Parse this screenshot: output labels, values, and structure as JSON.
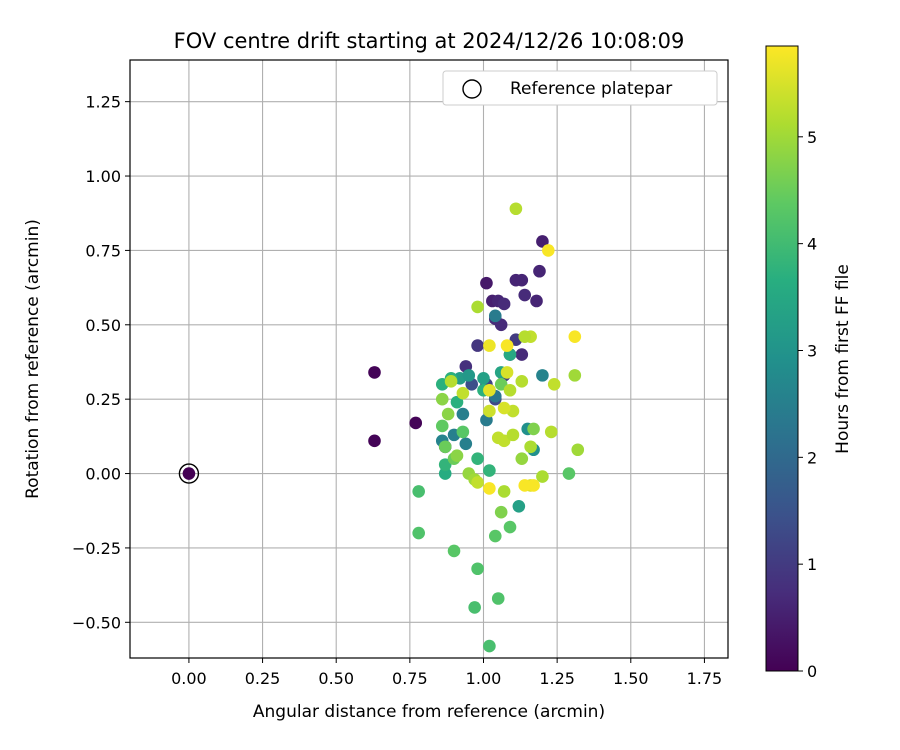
{
  "chart_data": {
    "type": "scatter",
    "title": "FOV centre drift starting at 2024/12/26 10:08:09",
    "xlabel": "Angular distance from reference (arcmin)",
    "ylabel": "Rotation from reference (arcmin)",
    "colorbar_label": "Hours from first FF file",
    "xlim": [
      -0.2,
      1.83
    ],
    "ylim": [
      -0.62,
      1.39
    ],
    "clim": [
      0,
      5.85
    ],
    "colormap": "viridis",
    "grid": true,
    "legend_position": "top-right",
    "x_ticks": [
      0.0,
      0.25,
      0.5,
      0.75,
      1.0,
      1.25,
      1.5,
      1.75
    ],
    "x_tick_labels": [
      "0.00",
      "0.25",
      "0.50",
      "0.75",
      "1.00",
      "1.25",
      "1.50",
      "1.75"
    ],
    "y_ticks": [
      -0.5,
      -0.25,
      0.0,
      0.25,
      0.5,
      0.75,
      1.0,
      1.25
    ],
    "y_tick_labels": [
      "−0.50",
      "−0.25",
      "0.00",
      "0.25",
      "0.50",
      "0.75",
      "1.00",
      "1.25"
    ],
    "colorbar_ticks": [
      0,
      1,
      2,
      3,
      4,
      5
    ],
    "colorbar_tick_labels": [
      "0",
      "1",
      "2",
      "3",
      "4",
      "5"
    ],
    "reference": {
      "x": 0.0,
      "y": 0.0,
      "hours": 0,
      "legend_label": "Reference platepar"
    },
    "series": [
      {
        "points": [
          [
            0.63,
            0.34,
            0.05
          ],
          [
            0.63,
            0.11,
            0.05
          ],
          [
            0.77,
            0.17,
            0.05
          ],
          [
            0.87,
            0.09,
            0.05
          ],
          [
            1.01,
            0.64,
            0.4
          ],
          [
            1.03,
            0.58,
            0.5
          ],
          [
            1.05,
            0.58,
            0.6
          ],
          [
            1.04,
            0.52,
            0.7
          ],
          [
            1.06,
            0.5,
            0.7
          ],
          [
            1.11,
            0.65,
            0.6
          ],
          [
            1.13,
            0.65,
            0.6
          ],
          [
            1.14,
            0.6,
            0.7
          ],
          [
            1.18,
            0.58,
            0.6
          ],
          [
            1.2,
            0.78,
            0.5
          ],
          [
            1.19,
            0.68,
            0.6
          ],
          [
            1.09,
            0.4,
            0.8
          ],
          [
            1.13,
            0.4,
            0.7
          ],
          [
            1.11,
            0.45,
            1.0
          ],
          [
            0.98,
            0.43,
            0.9
          ],
          [
            0.94,
            0.36,
            0.8
          ],
          [
            1.01,
            0.3,
            1.2
          ],
          [
            1.04,
            0.25,
            1.3
          ],
          [
            1.02,
            0.28,
            1.1
          ],
          [
            0.96,
            0.3,
            1.4
          ],
          [
            1.07,
            0.57,
            0.7
          ],
          [
            1.07,
            0.33,
            1.0
          ],
          [
            0.93,
            0.2,
            2.5
          ],
          [
            0.94,
            0.1,
            2.5
          ],
          [
            0.9,
            0.13,
            2.5
          ],
          [
            0.86,
            0.11,
            2.6
          ],
          [
            1.01,
            0.18,
            2.4
          ],
          [
            1.04,
            0.26,
            2.3
          ],
          [
            1.2,
            0.33,
            2.6
          ],
          [
            1.15,
            0.15,
            2.9
          ],
          [
            1.17,
            0.08,
            2.9
          ],
          [
            1.04,
            0.53,
            2.4
          ],
          [
            0.92,
            0.32,
            3.2
          ],
          [
            0.95,
            0.33,
            3.1
          ],
          [
            1.0,
            0.32,
            3.3
          ],
          [
            1.06,
            0.34,
            3.4
          ],
          [
            1.12,
            -0.11,
            3.3
          ],
          [
            0.87,
            0.0,
            3.6
          ],
          [
            0.87,
            0.03,
            3.8
          ],
          [
            0.89,
            0.32,
            3.7
          ],
          [
            0.86,
            0.3,
            3.7
          ],
          [
            0.91,
            0.24,
            3.7
          ],
          [
            1.0,
            0.28,
            3.7
          ],
          [
            1.02,
            0.01,
            3.8
          ],
          [
            0.98,
            0.05,
            3.8
          ],
          [
            1.09,
            0.4,
            3.5
          ],
          [
            0.78,
            -0.06,
            4.1
          ],
          [
            0.78,
            -0.2,
            4.2
          ],
          [
            0.9,
            -0.26,
            4.3
          ],
          [
            0.98,
            -0.32,
            4.2
          ],
          [
            0.97,
            -0.45,
            4.1
          ],
          [
            1.02,
            -0.58,
            4.1
          ],
          [
            1.04,
            -0.21,
            4.3
          ],
          [
            1.05,
            -0.42,
            4.2
          ],
          [
            1.09,
            -0.18,
            4.3
          ],
          [
            1.29,
            0.0,
            4.3
          ],
          [
            0.86,
            0.16,
            4.4
          ],
          [
            0.87,
            0.09,
            4.5
          ],
          [
            0.9,
            0.05,
            4.5
          ],
          [
            0.93,
            0.14,
            4.3
          ],
          [
            1.06,
            0.3,
            4.5
          ],
          [
            1.17,
            0.15,
            4.7
          ],
          [
            0.88,
            0.2,
            4.8
          ],
          [
            0.86,
            0.25,
            4.8
          ],
          [
            0.91,
            0.06,
            4.8
          ],
          [
            0.95,
            0.0,
            4.9
          ],
          [
            0.97,
            -0.02,
            5.0
          ],
          [
            1.06,
            -0.13,
            4.7
          ],
          [
            1.07,
            -0.06,
            5.1
          ],
          [
            1.13,
            0.05,
            4.9
          ],
          [
            1.16,
            0.09,
            5.1
          ],
          [
            1.2,
            -0.01,
            5.1
          ],
          [
            1.23,
            0.14,
            5.2
          ],
          [
            1.31,
            0.33,
            5.0
          ],
          [
            1.32,
            0.08,
            5.0
          ],
          [
            1.24,
            0.3,
            5.3
          ],
          [
            1.13,
            0.31,
            5.2
          ],
          [
            1.09,
            0.28,
            5.2
          ],
          [
            1.1,
            0.21,
            5.3
          ],
          [
            1.11,
            0.89,
            5.2
          ],
          [
            0.98,
            0.56,
            5.1
          ],
          [
            0.93,
            0.27,
            5.3
          ],
          [
            0.89,
            0.31,
            5.2
          ],
          [
            1.05,
            0.12,
            5.3
          ],
          [
            1.07,
            0.11,
            5.3
          ],
          [
            1.1,
            0.13,
            5.2
          ],
          [
            1.16,
            0.46,
            5.3
          ],
          [
            1.14,
            0.46,
            5.2
          ],
          [
            1.02,
            0.21,
            5.4
          ],
          [
            1.16,
            -0.04,
            5.5
          ],
          [
            0.98,
            -0.03,
            5.3
          ],
          [
            1.02,
            0.28,
            5.6
          ],
          [
            1.07,
            0.22,
            5.5
          ],
          [
            1.08,
            0.34,
            5.5
          ],
          [
            1.02,
            0.43,
            5.7
          ],
          [
            1.08,
            0.43,
            5.8
          ],
          [
            1.02,
            -0.05,
            5.8
          ],
          [
            1.14,
            -0.04,
            5.8
          ],
          [
            1.17,
            -0.04,
            5.8
          ],
          [
            1.31,
            0.46,
            5.8
          ],
          [
            1.22,
            0.75,
            5.8
          ]
        ]
      }
    ]
  }
}
